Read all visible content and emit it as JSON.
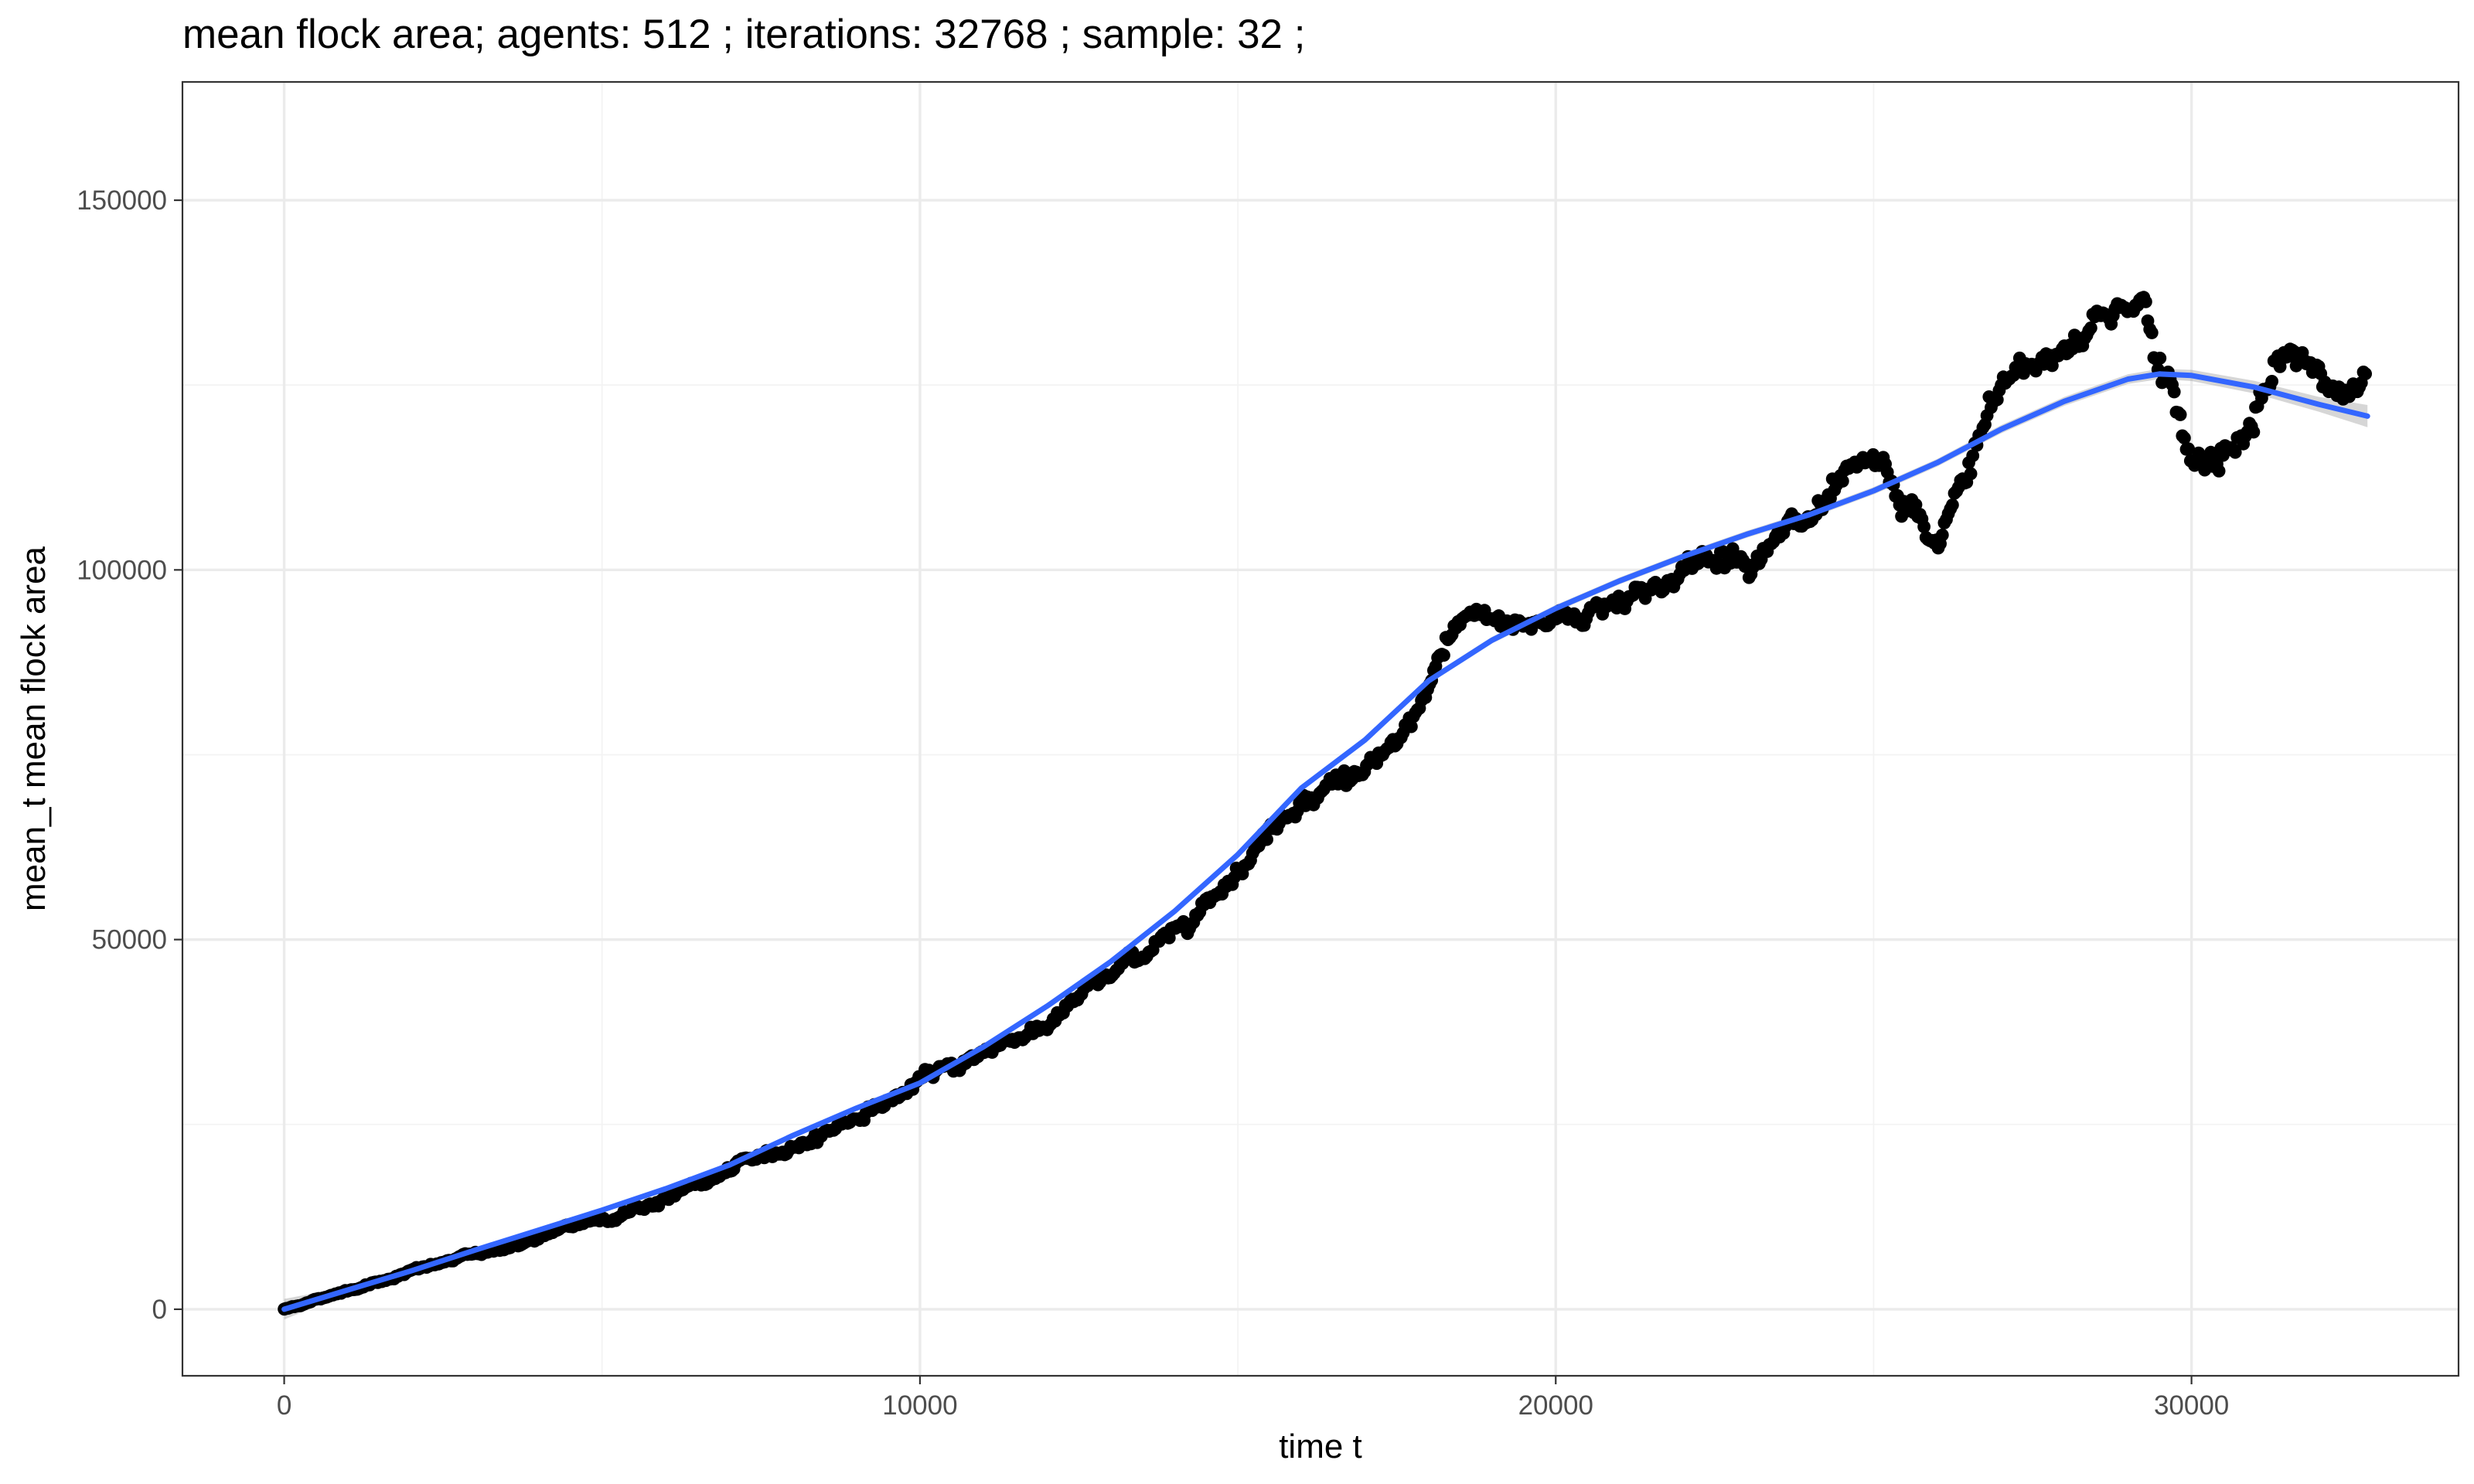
{
  "chart_data": {
    "type": "scatter",
    "title": "mean flock area; agents: 512 ; iterations: 32768 ; sample: 32 ;",
    "xlabel": "time t",
    "ylabel": "mean_t mean flock area",
    "xlim": [
      -1600,
      34200
    ],
    "ylim": [
      -9000,
      166000
    ],
    "xticks": [
      0,
      10000,
      20000,
      30000
    ],
    "xtick_labels": [
      "0",
      "10000",
      "20000",
      "30000"
    ],
    "yticks": [
      0,
      50000,
      100000,
      150000
    ],
    "ytick_labels": [
      "0",
      "50000",
      "100000",
      "150000"
    ],
    "x_minor": [
      5000,
      15000,
      25000
    ],
    "y_minor": [
      25000,
      75000,
      125000
    ],
    "grid": true,
    "point_color": "#000000",
    "smooth_color": "#3366ff",
    "ribbon_color": "#999999",
    "points_summary": {
      "step": 32,
      "count": 1024,
      "x_range": [
        0,
        32736
      ],
      "trend": [
        [
          0,
          0
        ],
        [
          2000,
          5200
        ],
        [
          4000,
          9500
        ],
        [
          6000,
          15000
        ],
        [
          8000,
          22000
        ],
        [
          10000,
          30500
        ],
        [
          12000,
          39000
        ],
        [
          14000,
          51000
        ],
        [
          16000,
          70000
        ],
        [
          17500,
          75000
        ],
        [
          18500,
          92000
        ],
        [
          20000,
          93000
        ],
        [
          22000,
          100000
        ],
        [
          24000,
          106000
        ],
        [
          25000,
          112000
        ],
        [
          26000,
          102000
        ],
        [
          27000,
          124000
        ],
        [
          28500,
          134000
        ],
        [
          29200,
          138000
        ],
        [
          30000,
          114000
        ],
        [
          31000,
          120000
        ],
        [
          31500,
          128000
        ],
        [
          32736,
          124000
        ]
      ]
    },
    "smooth": {
      "x": [
        0,
        1000,
        2000,
        3000,
        4000,
        5000,
        6000,
        7000,
        8000,
        9000,
        10000,
        11000,
        12000,
        13000,
        14000,
        15000,
        16000,
        17000,
        18000,
        19000,
        20000,
        21000,
        22000,
        23000,
        24000,
        25000,
        26000,
        27000,
        28000,
        29000,
        29500,
        30000,
        31000,
        32000,
        32768
      ],
      "y": [
        0,
        2600,
        5200,
        8000,
        10700,
        13400,
        16300,
        19500,
        23500,
        27200,
        30600,
        35500,
        41000,
        47000,
        53800,
        61500,
        70500,
        77000,
        85000,
        90500,
        94800,
        98500,
        101800,
        104800,
        107500,
        110700,
        114500,
        119000,
        122800,
        125800,
        126500,
        126300,
        124700,
        122400,
        120800
      ]
    },
    "ribbon_halfwidth": [
      1400,
      400,
      300,
      250,
      220,
      200,
      200,
      200,
      220,
      250,
      260,
      280,
      300,
      320,
      340,
      370,
      400,
      420,
      440,
      450,
      460,
      460,
      460,
      470,
      480,
      500,
      520,
      560,
      600,
      650,
      700,
      760,
      850,
      1000,
      1500
    ]
  }
}
